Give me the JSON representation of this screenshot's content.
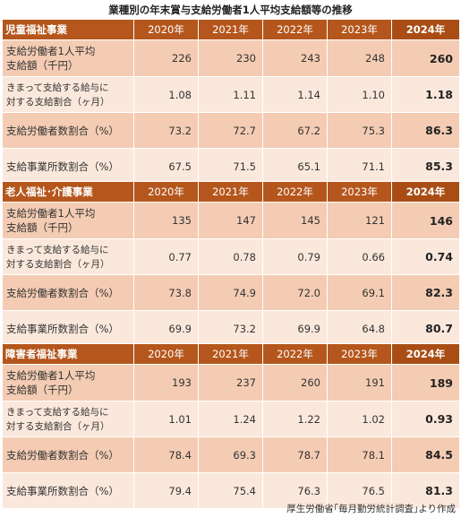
{
  "title": "業種別の年末賞与支給労働者1人平均支給額等の推移",
  "years": [
    "2020年",
    "2021年",
    "2022年",
    "2023年",
    "2024年"
  ],
  "row_labels": {
    "amount": [
      "支給労働者1人平均",
      "支給額（千円）"
    ],
    "months": [
      "きまって支給する給与に",
      "対する支給割合（ヶ月）"
    ],
    "worker_ratio": "支給労働者数割合（%）",
    "office_ratio": "支給事業所数割合（%）"
  },
  "sections": [
    {
      "name": "児童福祉事業",
      "amount": [
        "226",
        "230",
        "243",
        "248",
        "260"
      ],
      "months": [
        "1.08",
        "1.11",
        "1.14",
        "1.10",
        "1.18"
      ],
      "worker_ratio": [
        "73.2",
        "72.7",
        "67.2",
        "75.3",
        "86.3"
      ],
      "office_ratio": [
        "67.5",
        "71.5",
        "65.1",
        "71.1",
        "85.3"
      ]
    },
    {
      "name": "老人福祉･介護事業",
      "amount": [
        "135",
        "147",
        "145",
        "121",
        "146"
      ],
      "months": [
        "0.77",
        "0.78",
        "0.79",
        "0.66",
        "0.74"
      ],
      "worker_ratio": [
        "73.8",
        "74.9",
        "72.0",
        "69.1",
        "82.3"
      ],
      "office_ratio": [
        "69.9",
        "73.2",
        "69.9",
        "64.8",
        "80.7"
      ]
    },
    {
      "name": "障害者福祉事業",
      "amount": [
        "193",
        "237",
        "260",
        "191",
        "189"
      ],
      "months": [
        "1.01",
        "1.24",
        "1.22",
        "1.02",
        "0.93"
      ],
      "worker_ratio": [
        "78.4",
        "69.3",
        "78.7",
        "78.1",
        "84.5"
      ],
      "office_ratio": [
        "79.4",
        "75.4",
        "76.3",
        "76.5",
        "81.3"
      ]
    }
  ],
  "source": "厚生労働省｢毎月勤労統計調査｣より作成",
  "colors": {
    "header": "#b5561c",
    "row_light": "#fbe8dc",
    "row_dark": "#f4ccb3"
  }
}
